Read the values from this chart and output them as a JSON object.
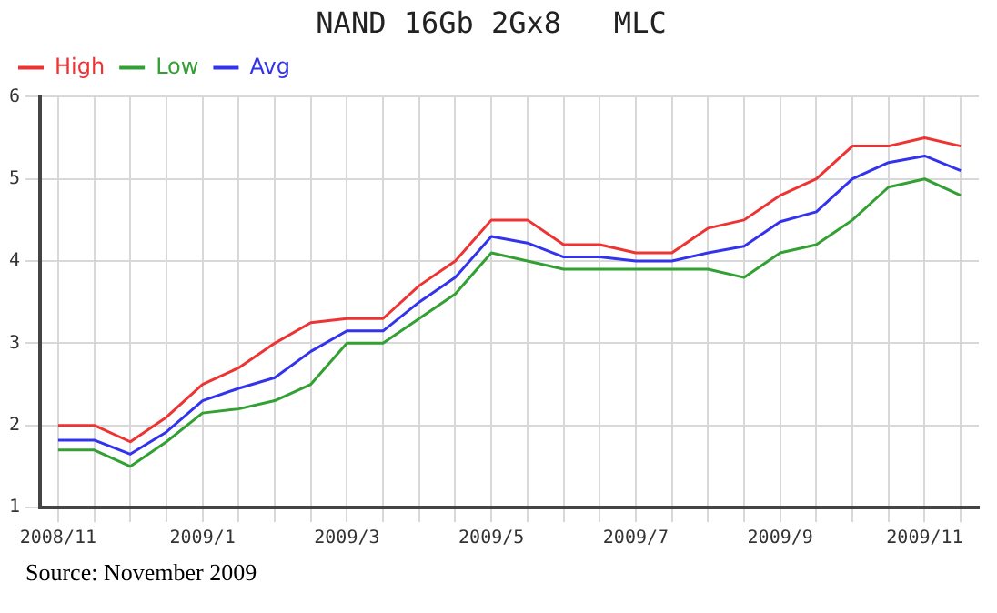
{
  "chart_data": {
    "type": "line",
    "title": "NAND 16Gb 2Gx8   MLC",
    "categories": [
      "2008/11",
      null,
      null,
      null,
      "2009/1",
      null,
      null,
      null,
      "2009/3",
      null,
      null,
      null,
      "2009/5",
      null,
      null,
      null,
      "2009/7",
      null,
      null,
      null,
      "2009/9",
      null,
      null,
      null,
      "2009/11",
      null
    ],
    "series": [
      {
        "name": "High",
        "color": "#ee3333",
        "values": [
          2.0,
          2.0,
          1.8,
          2.1,
          2.5,
          2.7,
          3.0,
          3.25,
          3.3,
          3.3,
          3.7,
          4.0,
          4.5,
          4.5,
          4.2,
          4.2,
          4.1,
          4.1,
          4.4,
          4.5,
          4.8,
          5.0,
          5.4,
          5.4,
          5.5,
          5.4
        ]
      },
      {
        "name": "Low",
        "color": "#33a033",
        "values": [
          1.7,
          1.7,
          1.5,
          1.8,
          2.15,
          2.2,
          2.3,
          2.5,
          3.0,
          3.0,
          3.3,
          3.6,
          4.1,
          4.0,
          3.9,
          3.9,
          3.9,
          3.9,
          3.9,
          3.8,
          4.1,
          4.2,
          4.5,
          4.9,
          5.0,
          4.8
        ]
      },
      {
        "name": "Avg",
        "color": "#3333ee",
        "values": [
          1.82,
          1.82,
          1.65,
          1.92,
          2.3,
          2.45,
          2.58,
          2.9,
          3.15,
          3.15,
          3.5,
          3.8,
          4.3,
          4.22,
          4.05,
          4.05,
          4.0,
          4.0,
          4.1,
          4.18,
          4.48,
          4.6,
          5.0,
          5.2,
          5.28,
          5.1
        ]
      }
    ],
    "ylim": [
      1,
      6
    ],
    "yticks": [
      1,
      2,
      3,
      4,
      5,
      6
    ],
    "grid": true,
    "legend": "top left",
    "marker": "none",
    "line_style": "solid",
    "annotations": [
      "Source: November 2009"
    ]
  }
}
